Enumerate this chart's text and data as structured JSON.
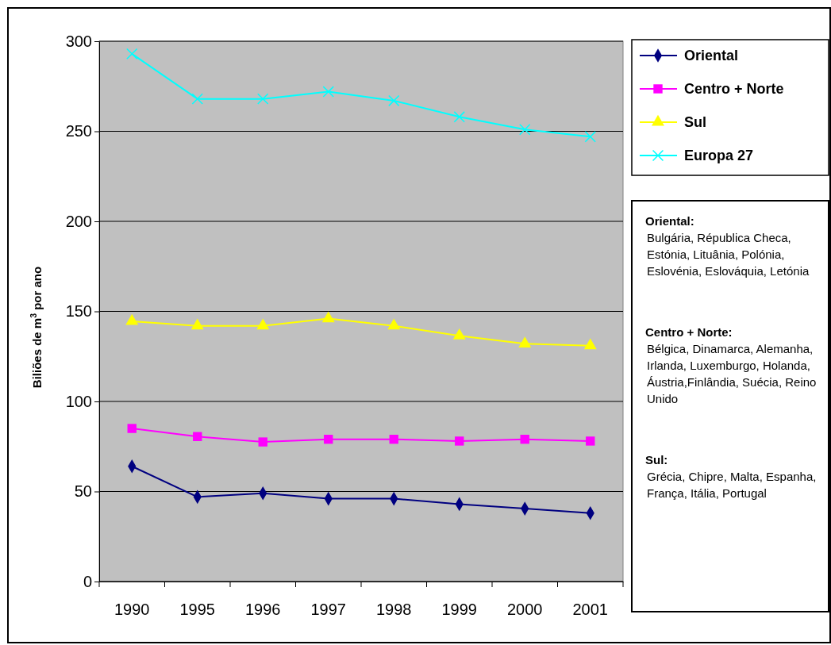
{
  "chart_data": {
    "type": "line",
    "ylabel": "Biliões de m$^{3}$ por ano",
    "categories": [
      "1990",
      "1995",
      "1996",
      "1997",
      "1998",
      "1999",
      "2000",
      "2001"
    ],
    "ylim": [
      0,
      300
    ],
    "yticks": [
      0,
      50,
      100,
      150,
      200,
      250,
      300
    ],
    "grid": "y",
    "legend": "top right",
    "series": [
      {
        "name": "Oriental",
        "color": "#000080",
        "marker": "diamond",
        "values": [
          64,
          47,
          49,
          46,
          46,
          43,
          40.5,
          38
        ]
      },
      {
        "name": "Centro + Norte",
        "color": "#ff00ff",
        "marker": "square",
        "values": [
          85,
          80.5,
          77.5,
          79,
          79,
          78,
          79,
          78
        ]
      },
      {
        "name": "Sul",
        "color": "#ffff00",
        "marker": "triangle",
        "values": [
          144.5,
          142,
          142,
          146,
          142,
          136.5,
          132,
          131
        ]
      },
      {
        "name": "Europa 27",
        "color": "#00ffff",
        "marker": "cross",
        "values": [
          293,
          268,
          268,
          272,
          267,
          258,
          251,
          247
        ]
      }
    ],
    "annotations": [
      "Oriental:",
      "Bulgária, Républica Checa, Estónia, Lituânia, Polónia, Eslovénia, Eslováquia, Letónia",
      "Centro + Norte:",
      "Bélgica, Dinamarca, Alemanha, Irlanda, Luxemburgo, Holanda, Áustria,Finlândia, Suécia, Reino Unido",
      "Sul:",
      "Grécia, Chipre, Malta, Espanha, França, Itália, Portugal"
    ]
  }
}
